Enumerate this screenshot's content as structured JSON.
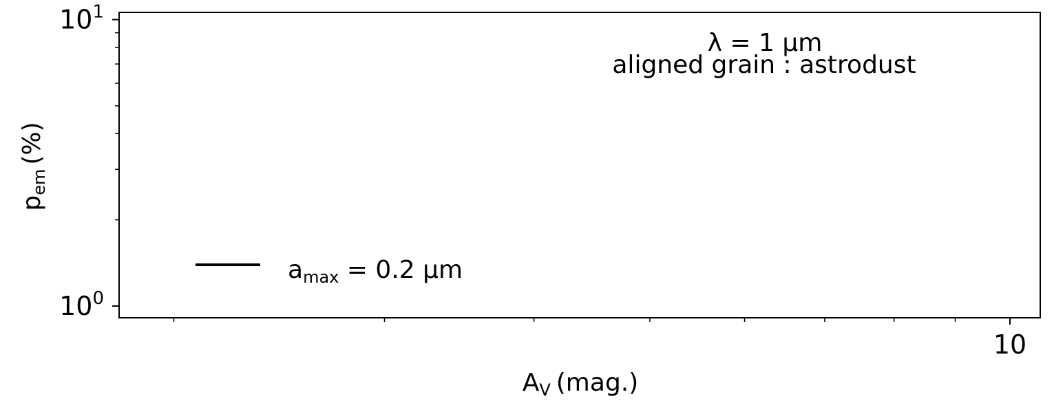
{
  "chart_data": {
    "type": "line",
    "title": "",
    "xlabel": {
      "main": "A",
      "sub": "V",
      "rest": "(mag.)"
    },
    "ylabel": {
      "main": "p",
      "sub": "em",
      "rest": "(%)"
    },
    "xscale": "log",
    "yscale": "log",
    "xlim": [
      1.8,
      10.6
    ],
    "ylim": [
      0.91,
      10.6
    ],
    "x_major_ticks": [
      {
        "value": 10,
        "label": "10"
      }
    ],
    "x_minor_ticks": [
      2,
      3,
      4,
      5,
      6,
      7,
      8,
      9
    ],
    "y_major_ticks": [
      {
        "value": 1,
        "base": "10",
        "exp": "0"
      },
      {
        "value": 10,
        "base": "10",
        "exp": "1"
      }
    ],
    "y_minor_ticks": [
      2,
      3,
      4,
      5,
      6,
      7,
      8,
      9
    ],
    "grid": false,
    "annotations": [
      {
        "text": "λ = 1 μm"
      },
      {
        "text": "aligned grain : astrodust"
      }
    ],
    "legend": {
      "placement": "lower-left",
      "entries": [
        {
          "main": "a",
          "sub": "max",
          "rest": " = 0.2 μm",
          "color": "#000000",
          "linestyle": "solid"
        }
      ]
    },
    "series": [
      {
        "name": "a_max = 0.2 μm",
        "color": "#000000",
        "x": [],
        "y": []
      }
    ]
  }
}
